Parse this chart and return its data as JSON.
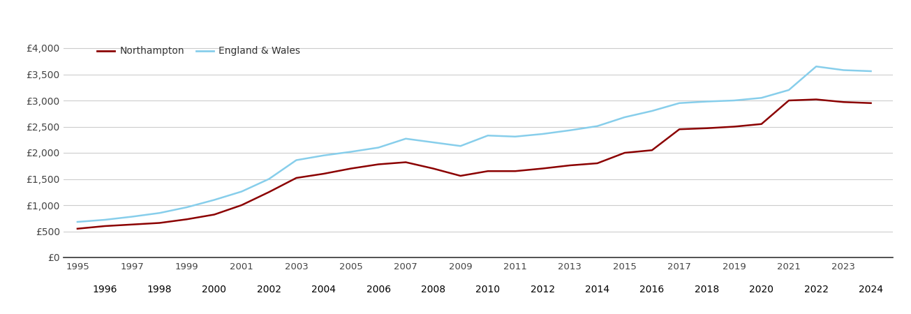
{
  "northampton": {
    "years": [
      1995,
      1996,
      1997,
      1998,
      1999,
      2000,
      2001,
      2002,
      2003,
      2004,
      2005,
      2006,
      2007,
      2008,
      2009,
      2010,
      2011,
      2012,
      2013,
      2014,
      2015,
      2016,
      2017,
      2018,
      2019,
      2020,
      2021,
      2022,
      2023,
      2024
    ],
    "values": [
      550,
      600,
      630,
      660,
      730,
      820,
      1000,
      1250,
      1520,
      1600,
      1700,
      1780,
      1820,
      1700,
      1560,
      1650,
      1650,
      1700,
      1760,
      1800,
      2000,
      2050,
      2450,
      2470,
      2500,
      2550,
      3000,
      3020,
      2970,
      2950
    ]
  },
  "england_wales": {
    "years": [
      1995,
      1996,
      1997,
      1998,
      1999,
      2000,
      2001,
      2002,
      2003,
      2004,
      2005,
      2006,
      2007,
      2008,
      2009,
      2010,
      2011,
      2012,
      2013,
      2014,
      2015,
      2016,
      2017,
      2018,
      2019,
      2020,
      2021,
      2022,
      2023,
      2024
    ],
    "values": [
      680,
      720,
      780,
      850,
      960,
      1100,
      1260,
      1500,
      1860,
      1950,
      2020,
      2100,
      2270,
      2200,
      2130,
      2330,
      2310,
      2360,
      2430,
      2510,
      2680,
      2800,
      2950,
      2980,
      3000,
      3050,
      3200,
      3650,
      3580,
      3560
    ]
  },
  "northampton_color": "#8B0000",
  "england_wales_color": "#87CEEB",
  "line_width": 1.8,
  "yticks": [
    0,
    500,
    1000,
    1500,
    2000,
    2500,
    3000,
    3500,
    4000
  ],
  "ytick_labels": [
    "£0",
    "£500",
    "£1,000",
    "£1,500",
    "£2,000",
    "£2,500",
    "£3,000",
    "£3,500",
    "£4,000"
  ],
  "ylim": [
    0,
    4200
  ],
  "xlim_min": 1994.5,
  "xlim_max": 2024.8,
  "background_color": "#ffffff",
  "grid_color": "#cccccc",
  "legend_northampton": "Northampton",
  "legend_england_wales": "England & Wales",
  "odd_years": [
    1995,
    1997,
    1999,
    2001,
    2003,
    2005,
    2007,
    2009,
    2011,
    2013,
    2015,
    2017,
    2019,
    2021,
    2023
  ],
  "even_years": [
    1996,
    1998,
    2000,
    2002,
    2004,
    2006,
    2008,
    2010,
    2012,
    2014,
    2016,
    2018,
    2020,
    2022,
    2024
  ]
}
